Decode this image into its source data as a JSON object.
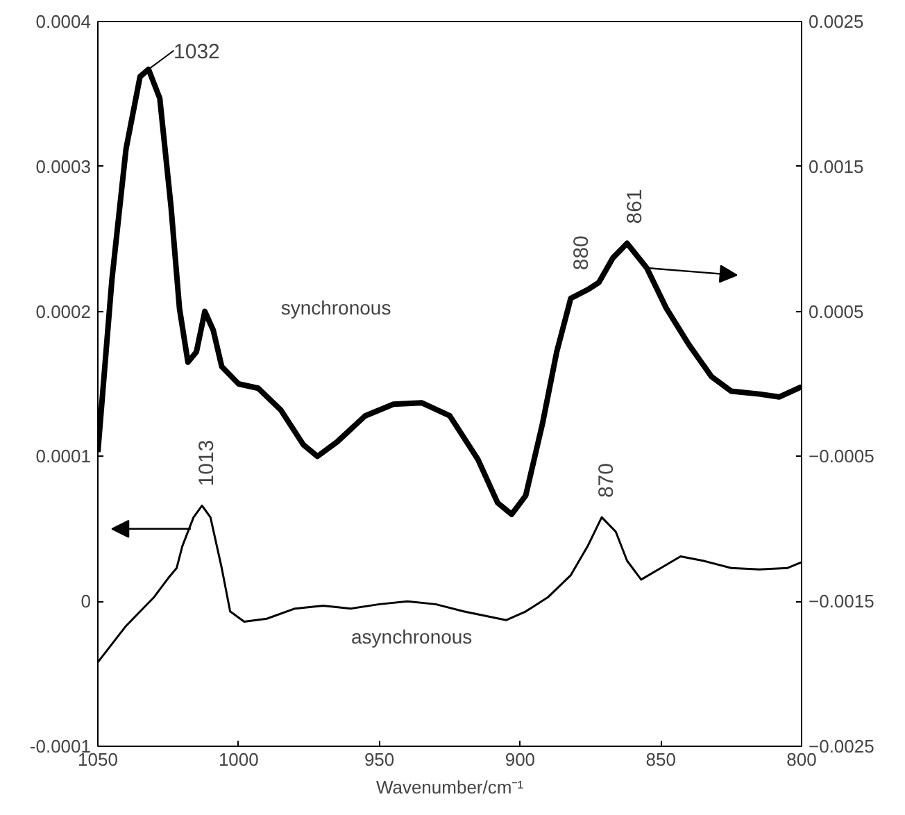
{
  "chart_data": {
    "type": "line",
    "xlabel": "Wavenumber/cm⁻¹",
    "xlim": [
      1050,
      800
    ],
    "xticks": [
      1050,
      1000,
      950,
      900,
      850,
      800
    ],
    "ylim": [
      -0.0001,
      0.0004
    ],
    "yticks": [
      {
        "value": -0.0001,
        "label": "-0.0001"
      },
      {
        "value": 0,
        "label": "0"
      },
      {
        "value": 0.0001,
        "label": "0.0001"
      },
      {
        "value": 0.0002,
        "label": "0.0002"
      },
      {
        "value": 0.0003,
        "label": "0.0003"
      },
      {
        "value": 0.0004,
        "label": "0.0004"
      }
    ],
    "y2lim": [
      -0.0025,
      0.0025
    ],
    "y2ticks": [
      {
        "value": -0.0025,
        "label": "−0.0025"
      },
      {
        "value": -0.0015,
        "label": "−0.0015"
      },
      {
        "value": -0.0005,
        "label": "−0.0005"
      },
      {
        "value": 0.0005,
        "label": "0.0005"
      },
      {
        "value": 0.0015,
        "label": "0.0015"
      },
      {
        "value": 0.0025,
        "label": "0.0025"
      }
    ],
    "grid": false,
    "marker": "none",
    "line_style": "solid",
    "series": [
      {
        "color": "#000000",
        "axis": "y2",
        "x": [
          1050,
          1045,
          1040,
          1035,
          1032,
          1028,
          1024,
          1021,
          1018,
          1015,
          1012,
          1009,
          1006,
          1000,
          993,
          985,
          977,
          972,
          965,
          955,
          945,
          935,
          925,
          915,
          908,
          903,
          898,
          892,
          887,
          882,
          876,
          872,
          867,
          862,
          855,
          848,
          840,
          832,
          825,
          815,
          808,
          800
        ],
        "values": [
          -0.00047,
          0.00072,
          0.00162,
          0.00212,
          0.00217,
          0.00197,
          0.00122,
          0.00052,
          0.00015,
          0.00022,
          0.0005,
          0.00037,
          0.00012,
          0.0,
          -3e-05,
          -0.00018,
          -0.00042,
          -0.0005,
          -0.0004,
          -0.00022,
          -0.00014,
          -0.00013,
          -0.00022,
          -0.00052,
          -0.00082,
          -0.0009,
          -0.00077,
          -0.00027,
          0.00022,
          0.00059,
          0.00065,
          0.0007,
          0.00087,
          0.00097,
          0.0008,
          0.00052,
          0.00027,
          5e-05,
          -5e-05,
          -7e-05,
          -9e-05,
          -2e-05
        ]
      },
      {
        "color": "#000000",
        "x": [
          1050,
          1040,
          1030,
          1025,
          1022,
          1020,
          1016,
          1013,
          1010,
          1006,
          1003,
          998,
          990,
          980,
          970,
          960,
          950,
          940,
          930,
          920,
          905,
          898,
          890,
          882,
          876,
          871,
          866,
          862,
          857,
          850,
          843,
          835,
          825,
          815,
          805,
          800
        ],
        "values": [
          -4.2e-05,
          -1.7e-05,
          3e-06,
          1.6e-05,
          2.3e-05,
          3.8e-05,
          5.8e-05,
          6.6e-05,
          5.8e-05,
          2.3e-05,
          -7e-06,
          -1.4e-05,
          -1.2e-05,
          -5e-06,
          -3e-06,
          -5e-06,
          -2e-06,
          0.0,
          -2e-06,
          -7e-06,
          -1.3e-05,
          -7e-06,
          3e-06,
          1.8e-05,
          3.8e-05,
          5.8e-05,
          4.8e-05,
          2.8e-05,
          1.5e-05,
          2.3e-05,
          3.1e-05,
          2.8e-05,
          2.3e-05,
          2.2e-05,
          2.3e-05,
          2.7e-05
        ]
      }
    ],
    "annotations": [
      {
        "text": "1032",
        "x": 1032,
        "y": 0.000367
      },
      {
        "text": "1013",
        "x": 1013,
        "y": 6.6e-05
      },
      {
        "text": "880",
        "x": 880,
        "y": 0.000215
      },
      {
        "text": "861",
        "x": 861,
        "y": 0.000247
      },
      {
        "text": "870",
        "x": 871,
        "y": 5.8e-05
      },
      "synchronous",
      "asynchronous"
    ]
  }
}
